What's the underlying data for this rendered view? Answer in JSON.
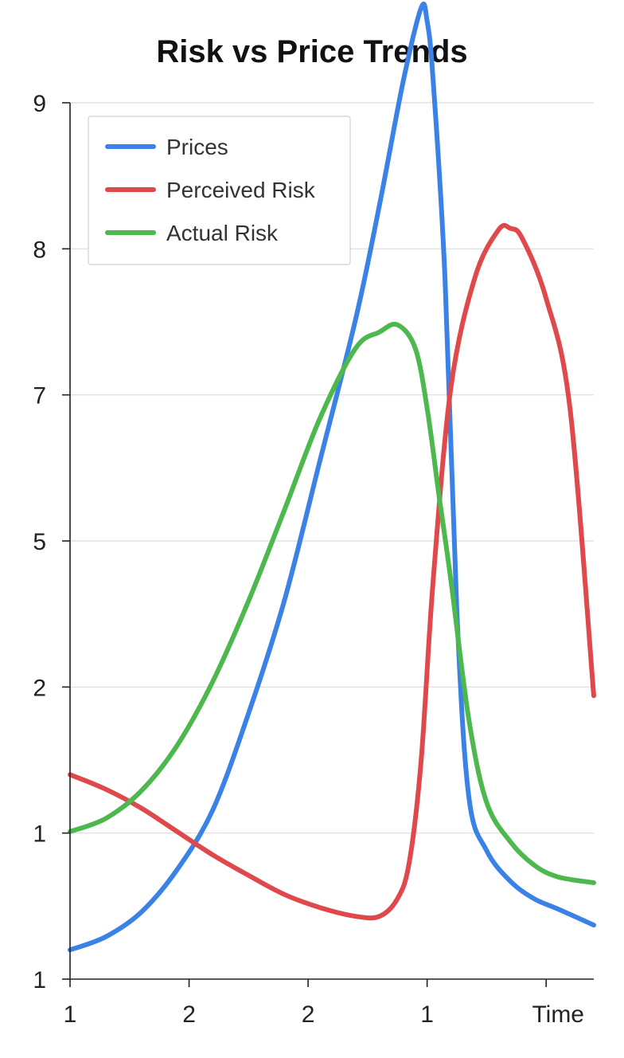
{
  "chart_data": {
    "type": "line",
    "title": "Risk vs Price Trends",
    "xlabel": "Time",
    "ylabel": "",
    "x_tick_labels": [
      "1",
      "2",
      "2",
      "1",
      "Time"
    ],
    "y_tick_labels": [
      "1",
      "1",
      "2",
      "5",
      "7",
      "8",
      "9"
    ],
    "grid": true,
    "legend_position": "top-left",
    "x_range": [
      0,
      4.4
    ],
    "y_range_by_tick_index": [
      0,
      6
    ],
    "series": [
      {
        "name": "Prices",
        "color": "#3b82e6",
        "x": [
          0,
          0.3,
          0.6,
          0.9,
          1.2,
          1.5,
          1.8,
          2.1,
          2.4,
          2.6,
          2.8,
          2.95,
          3.0,
          3.05,
          3.15,
          3.25,
          3.35,
          3.5,
          3.7,
          3.9,
          4.1,
          4.4
        ],
        "y_position": [
          0.2,
          0.29,
          0.46,
          0.75,
          1.16,
          1.82,
          2.59,
          3.55,
          4.52,
          5.3,
          6.15,
          6.65,
          6.56,
          6.16,
          4.8,
          2.52,
          1.25,
          0.88,
          0.67,
          0.55,
          0.48,
          0.37
        ]
      },
      {
        "name": "Perceived Risk",
        "color": "#e0494b",
        "x": [
          0,
          0.3,
          0.6,
          0.9,
          1.2,
          1.5,
          1.8,
          2.1,
          2.4,
          2.6,
          2.75,
          2.85,
          2.95,
          3.05,
          3.2,
          3.4,
          3.6,
          3.7,
          3.8,
          4.0,
          4.2,
          4.4
        ],
        "y_position": [
          1.4,
          1.3,
          1.17,
          1.01,
          0.85,
          0.71,
          0.58,
          0.49,
          0.43,
          0.43,
          0.55,
          0.8,
          1.5,
          2.72,
          4.05,
          4.8,
          5.13,
          5.14,
          5.07,
          4.66,
          3.91,
          1.94
        ]
      },
      {
        "name": "Actual Risk",
        "color": "#4cb84e",
        "x": [
          0,
          0.3,
          0.6,
          0.9,
          1.2,
          1.5,
          1.8,
          2.1,
          2.4,
          2.6,
          2.75,
          2.9,
          3.0,
          3.1,
          3.2,
          3.35,
          3.5,
          3.7,
          3.9,
          4.1,
          4.4
        ],
        "y_position": [
          1.01,
          1.1,
          1.29,
          1.6,
          2.04,
          2.59,
          3.21,
          3.84,
          4.32,
          4.43,
          4.48,
          4.32,
          3.91,
          3.31,
          2.73,
          1.78,
          1.21,
          0.94,
          0.78,
          0.7,
          0.66
        ]
      }
    ]
  }
}
